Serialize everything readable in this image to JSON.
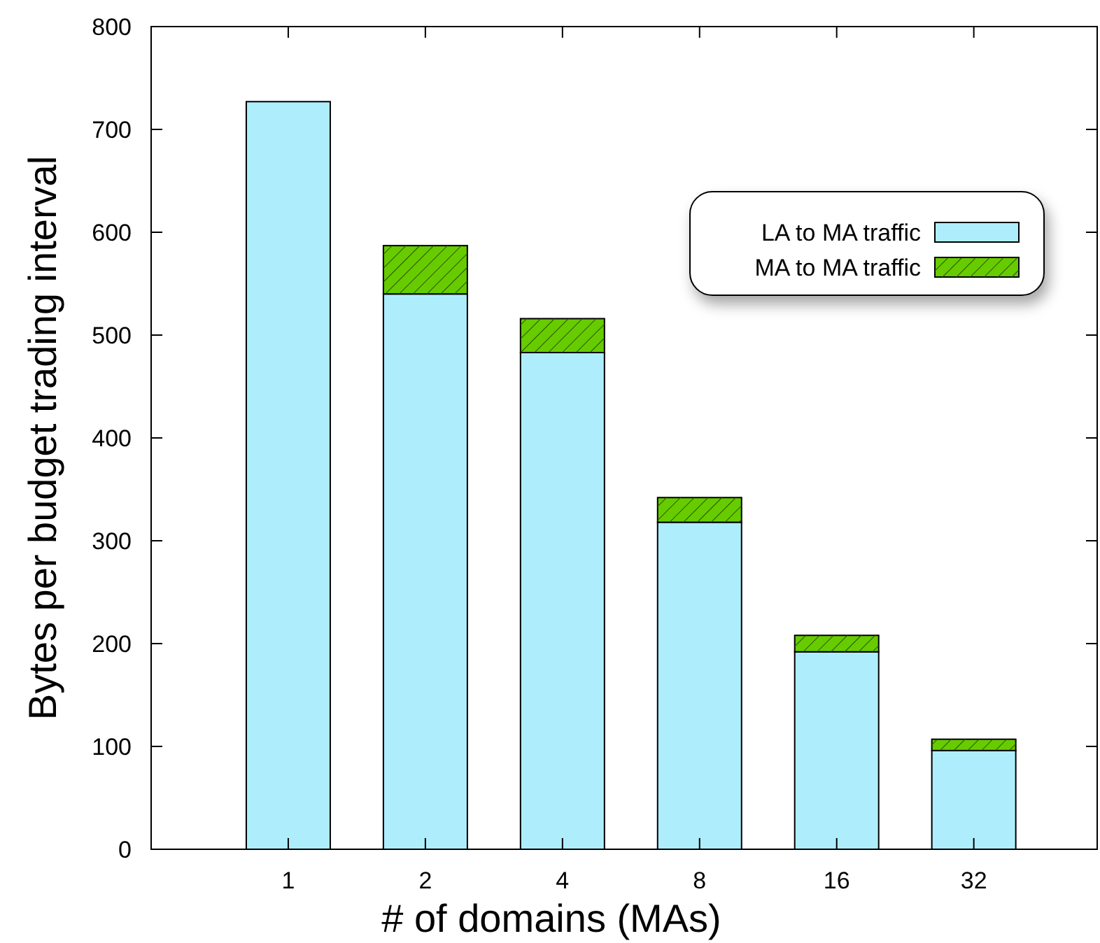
{
  "chart_data": {
    "type": "bar",
    "stacked": true,
    "xlabel": "# of domains (MAs)",
    "ylabel": "Bytes per budget trading interval",
    "categories": [
      "1",
      "2",
      "4",
      "8",
      "16",
      "32"
    ],
    "series": [
      {
        "name": "LA to MA traffic",
        "color": "#aeeefc",
        "values": [
          727,
          540,
          483,
          318,
          192,
          96
        ]
      },
      {
        "name": "MA to MA traffic",
        "color": "#66cc00",
        "values": [
          0,
          47,
          33,
          24,
          16,
          11
        ]
      }
    ],
    "ylim": [
      0,
      800
    ],
    "yticks": [
      0,
      100,
      200,
      300,
      400,
      500,
      600,
      700,
      800
    ],
    "grid": false,
    "legend": "top right"
  }
}
